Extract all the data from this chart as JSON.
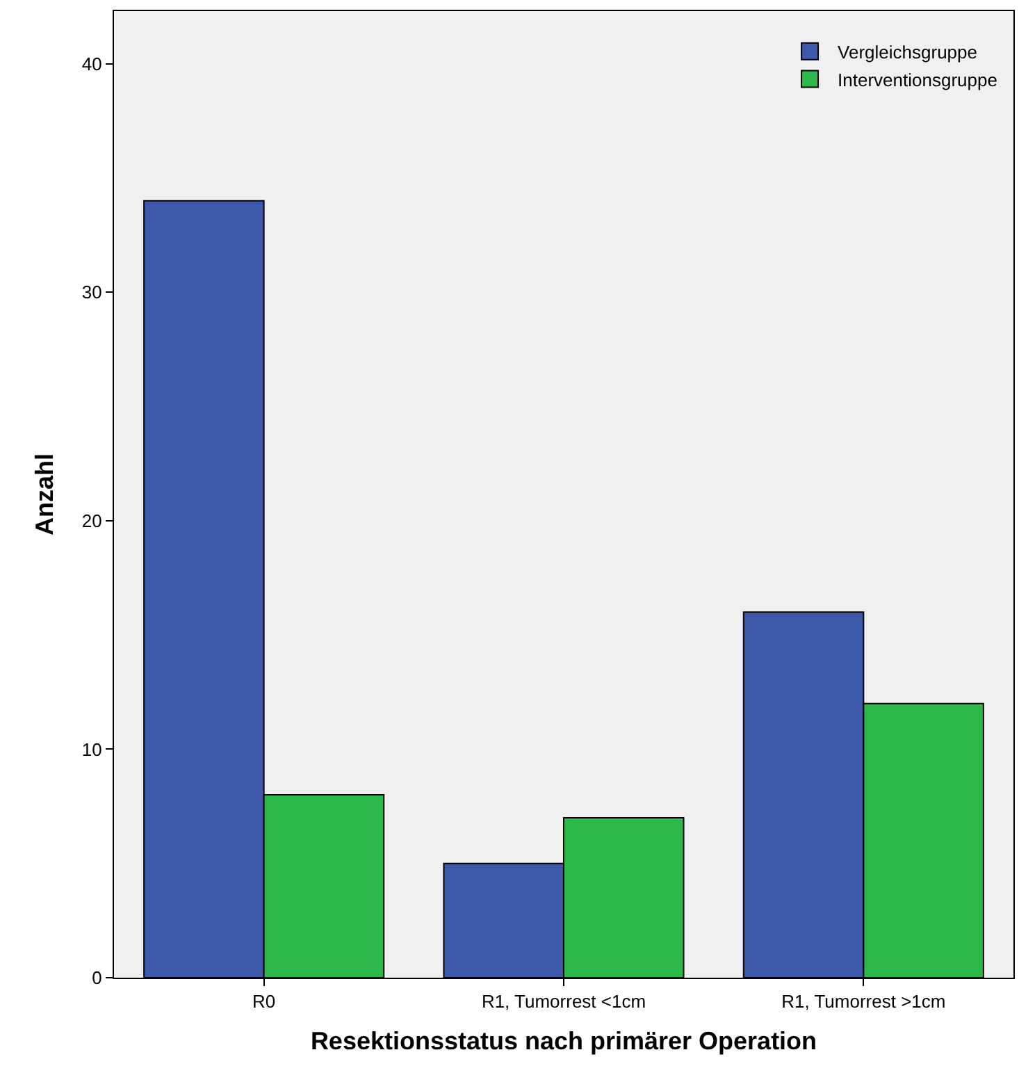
{
  "chart_data": {
    "type": "bar",
    "xlabel": "Resektionsstatus nach primärer Operation",
    "ylabel": "Anzahl",
    "categories": [
      "R0",
      "R1, Tumorrest <1cm",
      "R1, Tumorrest >1cm"
    ],
    "series": [
      {
        "name": "Vergleichsgruppe",
        "color": "#3e58ac",
        "values": [
          34,
          5,
          16
        ]
      },
      {
        "name": "Interventionsgruppe",
        "color": "#2db84a",
        "values": [
          8,
          7,
          12
        ]
      }
    ],
    "ylim": [
      0,
      42.3
    ],
    "yticks": [
      0,
      10,
      20,
      30,
      40
    ],
    "grid": false,
    "legend": "top right"
  }
}
